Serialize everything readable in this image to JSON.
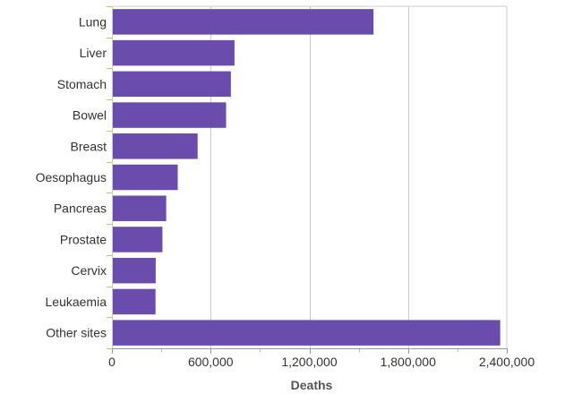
{
  "chart_data": {
    "type": "bar",
    "orientation": "horizontal",
    "categories": [
      "Lung",
      "Liver",
      "Stomach",
      "Bowel",
      "Breast",
      "Oesophagus",
      "Pancreas",
      "Prostate",
      "Cervix",
      "Leukaemia",
      "Other sites"
    ],
    "values": [
      1590000,
      745000,
      723000,
      694000,
      521000,
      400000,
      330000,
      307000,
      266000,
      265000,
      2360000
    ],
    "xlabel": "Deaths",
    "ylabel": "",
    "xlim": [
      0,
      2400000
    ],
    "xticks": [
      0,
      600000,
      1200000,
      1800000,
      2400000
    ],
    "xtick_labels": [
      "0",
      "600,000",
      "1,200,000",
      "1,800,000",
      "2,400,000"
    ],
    "grid": true,
    "bar_color": "#6a4cad"
  }
}
